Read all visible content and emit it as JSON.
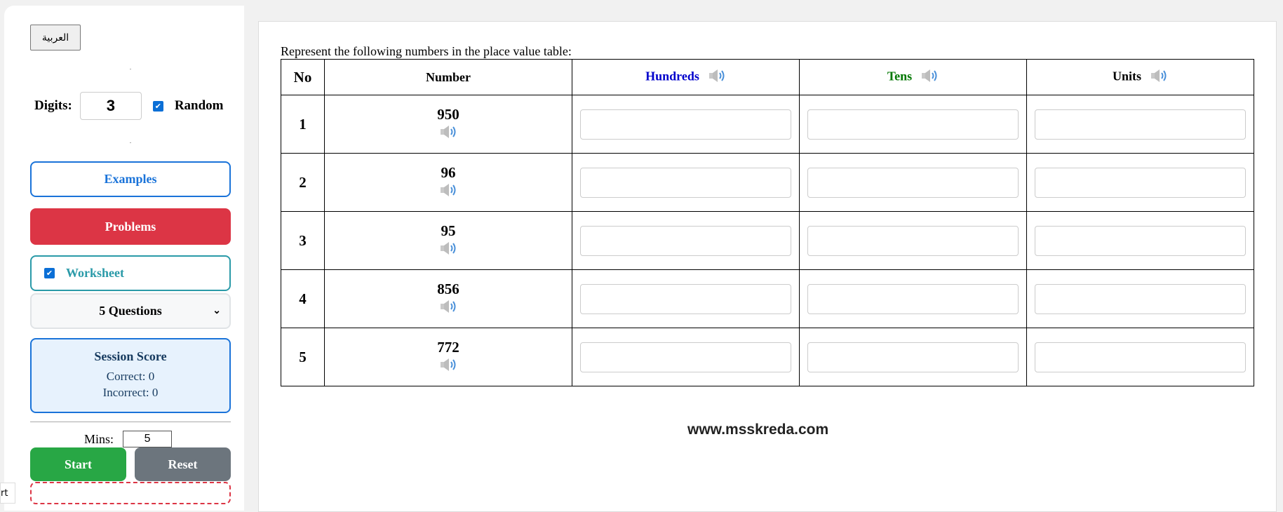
{
  "sidebar": {
    "language_button": "العربية",
    "digits_label": "Digits:",
    "digits_value": "3",
    "random_label": "Random",
    "random_checked": true,
    "examples": "Examples",
    "problems": "Problems",
    "worksheet": "Worksheet",
    "worksheet_checked": true,
    "questions_select": "5 Questions",
    "score": {
      "title": "Session Score",
      "correct": "Correct: 0",
      "incorrect": "Incorrect: 0"
    },
    "mins_label": "Mins:",
    "mins_value": "5",
    "start": "Start",
    "reset": "Reset",
    "tooltip_fragment": "rt"
  },
  "main": {
    "instruction": "Represent the following numbers in the place value table:",
    "headers": {
      "no": "No",
      "number": "Number",
      "hundreds": "Hundreds",
      "tens": "Tens",
      "units": "Units"
    },
    "header_colors": {
      "hundreds": "#0000cc",
      "tens": "#007700",
      "units": "#000000"
    },
    "rows": [
      {
        "no": "1",
        "number": "950"
      },
      {
        "no": "2",
        "number": "96"
      },
      {
        "no": "3",
        "number": "95"
      },
      {
        "no": "4",
        "number": "856"
      },
      {
        "no": "5",
        "number": "772"
      }
    ],
    "footer": "www.msskreda.com"
  }
}
